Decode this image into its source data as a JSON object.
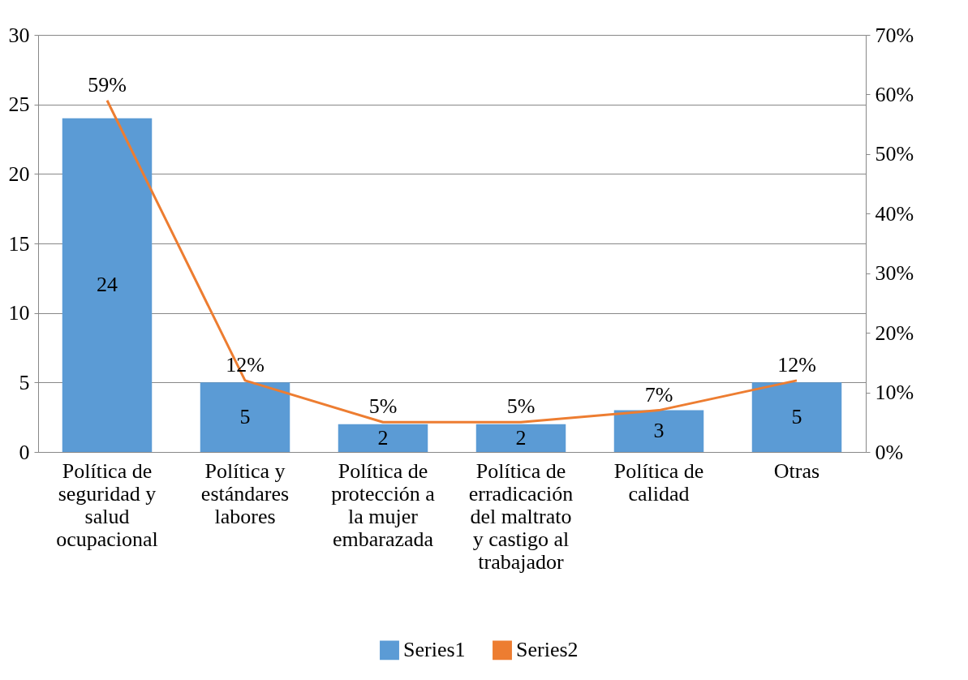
{
  "chart_data": {
    "type": "bar",
    "categories": [
      "Política de seguridad y salud ocupacional",
      "Política y estándares labores",
      "Política de protección a la mujer embarazada",
      "Política de erradicación del maltrato y castigo al trabajador",
      "Política de calidad",
      "Otras"
    ],
    "series": [
      {
        "name": "Series1",
        "color": "#5b9bd5",
        "values": [
          24,
          5,
          2,
          2,
          3,
          5
        ],
        "value_labels": [
          "24",
          "5",
          "2",
          "2",
          "3",
          "5"
        ]
      },
      {
        "name": "Series2",
        "type": "line",
        "axis": "y2",
        "color": "#ed7d31",
        "values": [
          59,
          12,
          5,
          5,
          7,
          12
        ],
        "value_labels": [
          "59%",
          "12%",
          "5%",
          "5%",
          "7%",
          "12%"
        ]
      }
    ],
    "ylim": [
      0,
      30
    ],
    "yticks": [
      0,
      5,
      10,
      15,
      20,
      25,
      30
    ],
    "y2lim": [
      0,
      70
    ],
    "y2ticks": [
      {
        "value": 0,
        "label": "0%"
      },
      {
        "value": 10,
        "label": "10%"
      },
      {
        "value": 20,
        "label": "20%"
      },
      {
        "value": 30,
        "label": "30%"
      },
      {
        "value": 40,
        "label": "40%"
      },
      {
        "value": 50,
        "label": "50%"
      },
      {
        "value": 60,
        "label": "60%"
      },
      {
        "value": 70,
        "label": "70%"
      }
    ],
    "grid": "y",
    "legend": "bottom",
    "marker": "none",
    "line_style": "solid"
  }
}
